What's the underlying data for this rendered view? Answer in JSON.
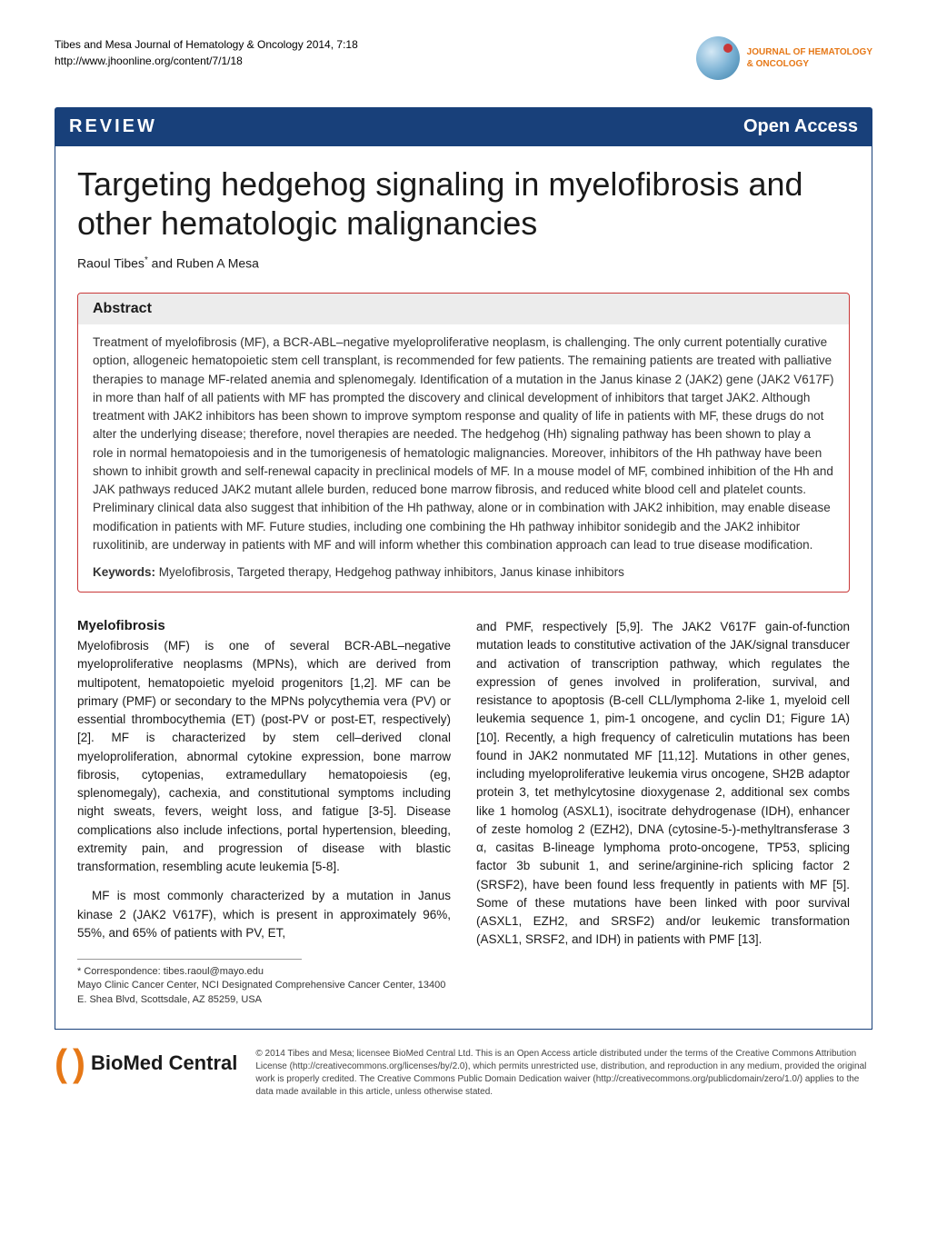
{
  "header": {
    "citation_line1": "Tibes and Mesa Journal of Hematology & Oncology 2014, 7:18",
    "citation_line2": "http://www.jhoonline.org/content/7/1/18",
    "journal_name_line1": "JOURNAL OF HEMATOLOGY",
    "journal_name_line2": "& ONCOLOGY"
  },
  "bar": {
    "review": "REVIEW",
    "open_access": "Open Access"
  },
  "title": "Targeting hedgehog signaling in myelofibrosis and other hematologic malignancies",
  "authors": "Raoul Tibes* and Ruben A Mesa",
  "abstract": {
    "heading": "Abstract",
    "text": "Treatment of myelofibrosis (MF), a BCR-ABL–negative myeloproliferative neoplasm, is challenging. The only current potentially curative option, allogeneic hematopoietic stem cell transplant, is recommended for few patients. The remaining patients are treated with palliative therapies to manage MF-related anemia and splenomegaly. Identification of a mutation in the Janus kinase 2 (JAK2) gene (JAK2 V617F) in more than half of all patients with MF has prompted the discovery and clinical development of inhibitors that target JAK2. Although treatment with JAK2 inhibitors has been shown to improve symptom response and quality of life in patients with MF, these drugs do not alter the underlying disease; therefore, novel therapies are needed. The hedgehog (Hh) signaling pathway has been shown to play a role in normal hematopoiesis and in the tumorigenesis of hematologic malignancies. Moreover, inhibitors of the Hh pathway have been shown to inhibit growth and self-renewal capacity in preclinical models of MF. In a mouse model of MF, combined inhibition of the Hh and JAK pathways reduced JAK2 mutant allele burden, reduced bone marrow fibrosis, and reduced white blood cell and platelet counts. Preliminary clinical data also suggest that inhibition of the Hh pathway, alone or in combination with JAK2 inhibition, may enable disease modification in patients with MF. Future studies, including one combining the Hh pathway inhibitor sonidegib and the JAK2 inhibitor ruxolitinib, are underway in patients with MF and will inform whether this combination approach can lead to true disease modification.",
    "keywords_label": "Keywords:",
    "keywords": " Myelofibrosis, Targeted therapy, Hedgehog pathway inhibitors, Janus kinase inhibitors"
  },
  "body": {
    "section_heading": "Myelofibrosis",
    "left_p1": "Myelofibrosis (MF) is one of several BCR-ABL–negative myeloproliferative neoplasms (MPNs), which are derived from multipotent, hematopoietic myeloid progenitors [1,2]. MF can be primary (PMF) or secondary to the MPNs polycythemia vera (PV) or essential thrombocythemia (ET) (post-PV or post-ET, respectively) [2]. MF is characterized by stem cell–derived clonal myeloproliferation, abnormal cytokine expression, bone marrow fibrosis, cytopenias, extramedullary hematopoiesis (eg, splenomegaly), cachexia, and constitutional symptoms including night sweats, fevers, weight loss, and fatigue [3-5]. Disease complications also include infections, portal hypertension, bleeding, extremity pain, and progression of disease with blastic transformation, resembling acute leukemia [5-8].",
    "left_p2": "MF is most commonly characterized by a mutation in Janus kinase 2 (JAK2 V617F), which is present in approximately 96%, 55%, and 65% of patients with PV, ET,",
    "right_p1": "and PMF, respectively [5,9]. The JAK2 V617F gain-of-function mutation leads to constitutive activation of the JAK/signal transducer and activation of transcription pathway, which regulates the expression of genes involved in proliferation, survival, and resistance to apoptosis (B-cell CLL/lymphoma 2-like 1, myeloid cell leukemia sequence 1, pim-1 oncogene, and cyclin D1; Figure 1A) [10]. Recently, a high frequency of calreticulin mutations has been found in JAK2 nonmutated MF [11,12]. Mutations in other genes, including myeloproliferative leukemia virus oncogene, SH2B adaptor protein 3, tet methylcytosine dioxygenase 2, additional sex combs like 1 homolog (ASXL1), isocitrate dehydrogenase (IDH), enhancer of zeste homolog 2 (EZH2), DNA (cytosine-5-)-methyltransferase 3 α, casitas B-lineage lymphoma proto-oncogene, TP53, splicing factor 3b subunit 1, and serine/arginine-rich splicing factor 2 (SRSF2), have been found less frequently in patients with MF [5]. Some of these mutations have been linked with poor survival (ASXL1, EZH2, and SRSF2) and/or leukemic transformation (ASXL1, SRSF2, and IDH) in patients with PMF [13]."
  },
  "footnote": {
    "correspondence": "* Correspondence: tibes.raoul@mayo.edu",
    "affiliation": "Mayo Clinic Cancer Center, NCI Designated Comprehensive Cancer Center, 13400 E. Shea Blvd, Scottsdale, AZ 85259, USA"
  },
  "footer": {
    "bmc_paren_open": "(",
    "bmc_paren_close": ")",
    "bmc_text1": "BioMed ",
    "bmc_text2": "Central",
    "license": "© 2014 Tibes and Mesa; licensee BioMed Central Ltd. This is an Open Access article distributed under the terms of the Creative Commons Attribution License (http://creativecommons.org/licenses/by/2.0), which permits unrestricted use, distribution, and reproduction in any medium, provided the original work is properly credited. The Creative Commons Public Domain Dedication waiver (http://creativecommons.org/publicdomain/zero/1.0/) applies to the data made available in this article, unless otherwise stated."
  },
  "colors": {
    "bar_bg": "#18407a",
    "accent_red": "#c93838",
    "accent_orange": "#e67817"
  }
}
